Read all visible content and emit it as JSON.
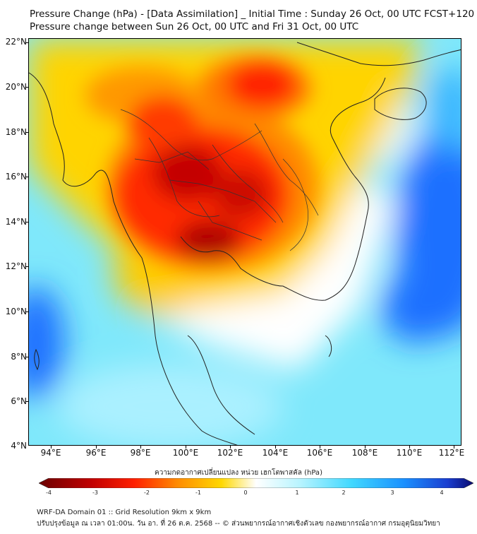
{
  "title_line1": "Pressure Change (hPa) - [Data Assimilation] _ Initial Time : Sunday 26 Oct, 00 UTC FCST+120",
  "title_line2": "Pressure change between Sun 26 Oct, 00 UTC and Fri 31 Oct, 00 UTC",
  "lat_labels": [
    "22°N",
    "20°N",
    "18°N",
    "16°N",
    "14°N",
    "12°N",
    "10°N",
    "8°N",
    "6°N",
    "4°N"
  ],
  "lon_labels": [
    "94°E",
    "96°E",
    "98°E",
    "100°E",
    "102°E",
    "104°E",
    "106°E",
    "108°E",
    "110°E",
    "112°E"
  ],
  "colorbar": {
    "title": "ความกดอากาศเปลี่ยนแปลง หน่วย เฮกโตพาสคัล (hPa)",
    "tick_labels": [
      "-4",
      "-3",
      "-2",
      "-1",
      "0",
      "1",
      "2",
      "3",
      "4"
    ],
    "min": -4,
    "max": 4
  },
  "footer_line1": "WRF-DA Domain 01 :: Grid Resolution 9km x 9km",
  "footer_line2": "ปรับปรุงข้อมูล ณ เวลา 01:00น. วัน อา. ที่ 26 ต.ค. 2568 -- © ส่วนพยากรณ์อากาศเชิงตัวเลข กองพยากรณ์อากาศ กรมอุตุนิยมวิทยา",
  "colors": {
    "strong_fall": "#8b0000",
    "fall": "#ff2200",
    "slight_fall": "#ffd800",
    "neutral": "#ffffff",
    "slight_rise": "#55e6ff",
    "rise": "#1aa8ff",
    "strong_rise": "#0a1f9e"
  }
}
